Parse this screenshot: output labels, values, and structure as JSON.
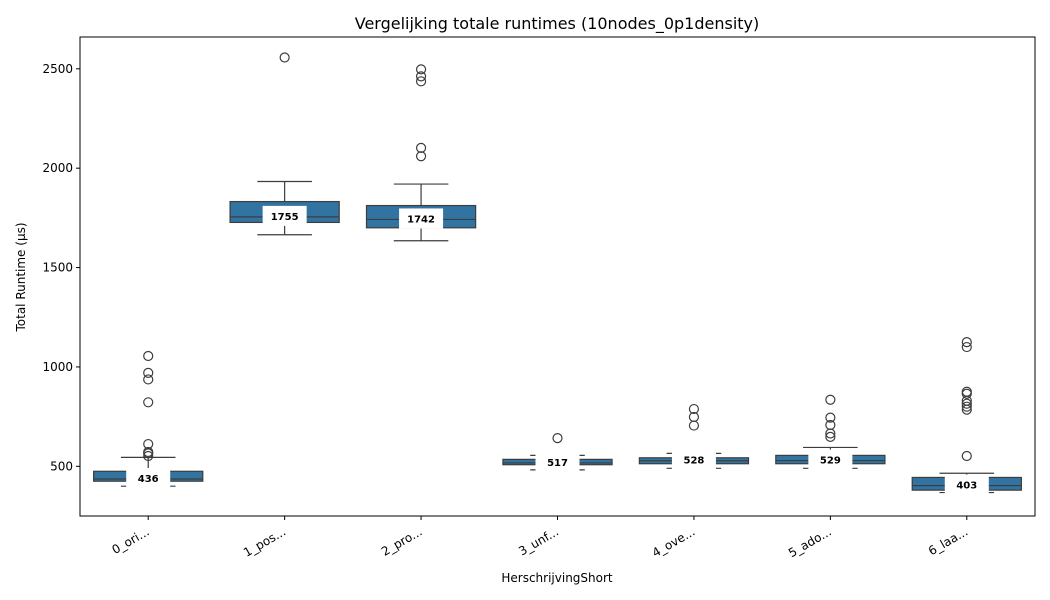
{
  "chart_data": {
    "type": "box",
    "title": "Vergelijking totale runtimes (10nodes_0p1density)",
    "xlabel": "HerschrijvingShort",
    "ylabel": "Total Runtime (µs)",
    "ylim": [
      250,
      2660
    ],
    "yticks": [
      500,
      1000,
      1500,
      2000,
      2500
    ],
    "grid": false,
    "legend": "none",
    "box_color": "#3274a1",
    "categories": [
      "0_ori...",
      "1_pos...",
      "2_pro...",
      "3_unf...",
      "4_ove...",
      "5_ado...",
      "6_laa..."
    ],
    "boxes": [
      {
        "label": "0_ori...",
        "whisker_low": 400,
        "q1": 425,
        "median": 436,
        "q3": 475,
        "whisker_high": 545,
        "median_label": "436",
        "outliers": [
          1055,
          970,
          937,
          822,
          612,
          572,
          565,
          552
        ]
      },
      {
        "label": "1_pos...",
        "whisker_low": 1665,
        "q1": 1727,
        "median": 1755,
        "q3": 1832,
        "whisker_high": 1933,
        "median_label": "1755",
        "outliers": [
          2557
        ]
      },
      {
        "label": "2_pro...",
        "whisker_low": 1635,
        "q1": 1700,
        "median": 1742,
        "q3": 1812,
        "whisker_high": 1920,
        "median_label": "1742",
        "outliers": [
          2497,
          2462,
          2437,
          2102,
          2060
        ]
      },
      {
        "label": "3_unf...",
        "whisker_low": 482,
        "q1": 508,
        "median": 517,
        "q3": 535,
        "whisker_high": 555,
        "median_label": "517",
        "outliers": [
          642
        ]
      },
      {
        "label": "4_ove...",
        "whisker_low": 490,
        "q1": 513,
        "median": 528,
        "q3": 543,
        "whisker_high": 565,
        "median_label": "528",
        "outliers": [
          788,
          748,
          705
        ]
      },
      {
        "label": "5_ado...",
        "whisker_low": 490,
        "q1": 513,
        "median": 529,
        "q3": 555,
        "whisker_high": 595,
        "median_label": "529",
        "outliers": [
          835,
          745,
          708,
          665,
          648
        ]
      },
      {
        "label": "6_laa...",
        "whisker_low": 368,
        "q1": 380,
        "median": 403,
        "q3": 444,
        "whisker_high": 465,
        "median_label": "403",
        "outliers": [
          1125,
          1100,
          875,
          865,
          830,
          815,
          800,
          785,
          552
        ]
      }
    ]
  }
}
